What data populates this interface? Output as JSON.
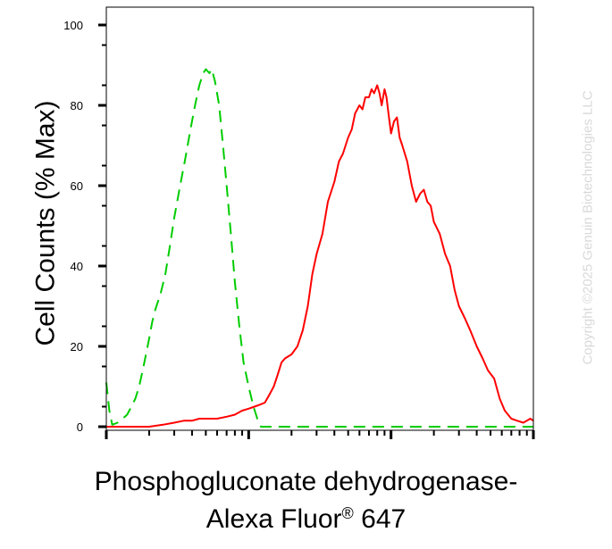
{
  "watermark": "Copyright ©2025 Genuin Biotechnologies LLC",
  "chart_data": {
    "type": "line",
    "xlabel_line1": "Phosphogluconate dehydrogenase-",
    "xlabel_line2_main": "Alexa Fluor",
    "xlabel_line2_sup": "®",
    "xlabel_line2_tail": " 647",
    "ylabel": "Cell Counts (% Max)",
    "ylim": [
      0,
      100
    ],
    "yticks": [
      "0",
      "20",
      "40",
      "60",
      "80",
      "100"
    ],
    "x_scale": "log",
    "xlim": [
      10,
      10000
    ],
    "series": [
      {
        "color": "#00cc00",
        "dash": "dashed",
        "points": [
          [
            10,
            11
          ],
          [
            10.5,
            4
          ],
          [
            11,
            0.5
          ],
          [
            12,
            1
          ],
          [
            13,
            2
          ],
          [
            14,
            3
          ],
          [
            15,
            5
          ],
          [
            16,
            7
          ],
          [
            17,
            10
          ],
          [
            18,
            14
          ],
          [
            19,
            18
          ],
          [
            20,
            22
          ],
          [
            21,
            26
          ],
          [
            22,
            29
          ],
          [
            24,
            33
          ],
          [
            26,
            38
          ],
          [
            28,
            45
          ],
          [
            30,
            52
          ],
          [
            33,
            60
          ],
          [
            36,
            67
          ],
          [
            39,
            74
          ],
          [
            42,
            80
          ],
          [
            45,
            85
          ],
          [
            48,
            88
          ],
          [
            50,
            89
          ],
          [
            53,
            88
          ],
          [
            55,
            89
          ],
          [
            58,
            86
          ],
          [
            62,
            80
          ],
          [
            66,
            70
          ],
          [
            70,
            60
          ],
          [
            75,
            48
          ],
          [
            80,
            36
          ],
          [
            86,
            25
          ],
          [
            92,
            16
          ],
          [
            100,
            10
          ],
          [
            108,
            5
          ],
          [
            115,
            2
          ],
          [
            122,
            0
          ],
          [
            10000,
            0
          ]
        ]
      },
      {
        "color": "#ff0000",
        "dash": "solid",
        "points": [
          [
            10,
            0
          ],
          [
            20,
            0
          ],
          [
            25,
            0.5
          ],
          [
            30,
            1
          ],
          [
            35,
            1.5
          ],
          [
            40,
            1.5
          ],
          [
            45,
            2
          ],
          [
            50,
            2
          ],
          [
            55,
            2
          ],
          [
            60,
            2
          ],
          [
            70,
            2.5
          ],
          [
            80,
            3
          ],
          [
            90,
            4
          ],
          [
            100,
            4.5
          ],
          [
            110,
            5
          ],
          [
            120,
            5.5
          ],
          [
            130,
            6
          ],
          [
            140,
            8
          ],
          [
            150,
            10
          ],
          [
            160,
            13
          ],
          [
            170,
            16
          ],
          [
            180,
            17
          ],
          [
            200,
            18
          ],
          [
            220,
            20
          ],
          [
            240,
            24
          ],
          [
            260,
            30
          ],
          [
            280,
            38
          ],
          [
            300,
            43
          ],
          [
            330,
            48
          ],
          [
            360,
            56
          ],
          [
            400,
            61
          ],
          [
            430,
            66
          ],
          [
            460,
            68
          ],
          [
            500,
            72
          ],
          [
            530,
            74
          ],
          [
            560,
            78
          ],
          [
            600,
            80
          ],
          [
            630,
            79
          ],
          [
            660,
            82
          ],
          [
            700,
            82
          ],
          [
            730,
            84
          ],
          [
            760,
            83
          ],
          [
            800,
            85
          ],
          [
            830,
            83
          ],
          [
            860,
            80
          ],
          [
            900,
            84
          ],
          [
            930,
            82
          ],
          [
            960,
            78
          ],
          [
            1000,
            73
          ],
          [
            1050,
            76
          ],
          [
            1100,
            77
          ],
          [
            1150,
            72
          ],
          [
            1200,
            70
          ],
          [
            1300,
            66
          ],
          [
            1400,
            60
          ],
          [
            1500,
            56
          ],
          [
            1600,
            58
          ],
          [
            1700,
            59
          ],
          [
            1800,
            56
          ],
          [
            1900,
            55
          ],
          [
            2000,
            51
          ],
          [
            2200,
            48
          ],
          [
            2400,
            43
          ],
          [
            2600,
            40
          ],
          [
            2800,
            34
          ],
          [
            3000,
            30
          ],
          [
            3300,
            27
          ],
          [
            3600,
            24
          ],
          [
            4000,
            20
          ],
          [
            4400,
            17
          ],
          [
            4800,
            14
          ],
          [
            5300,
            12
          ],
          [
            5800,
            7
          ],
          [
            6300,
            4
          ],
          [
            7000,
            2
          ],
          [
            7700,
            1.5
          ],
          [
            8500,
            1
          ],
          [
            9000,
            1.5
          ],
          [
            9500,
            2
          ],
          [
            10000,
            1.5
          ]
        ]
      }
    ]
  }
}
